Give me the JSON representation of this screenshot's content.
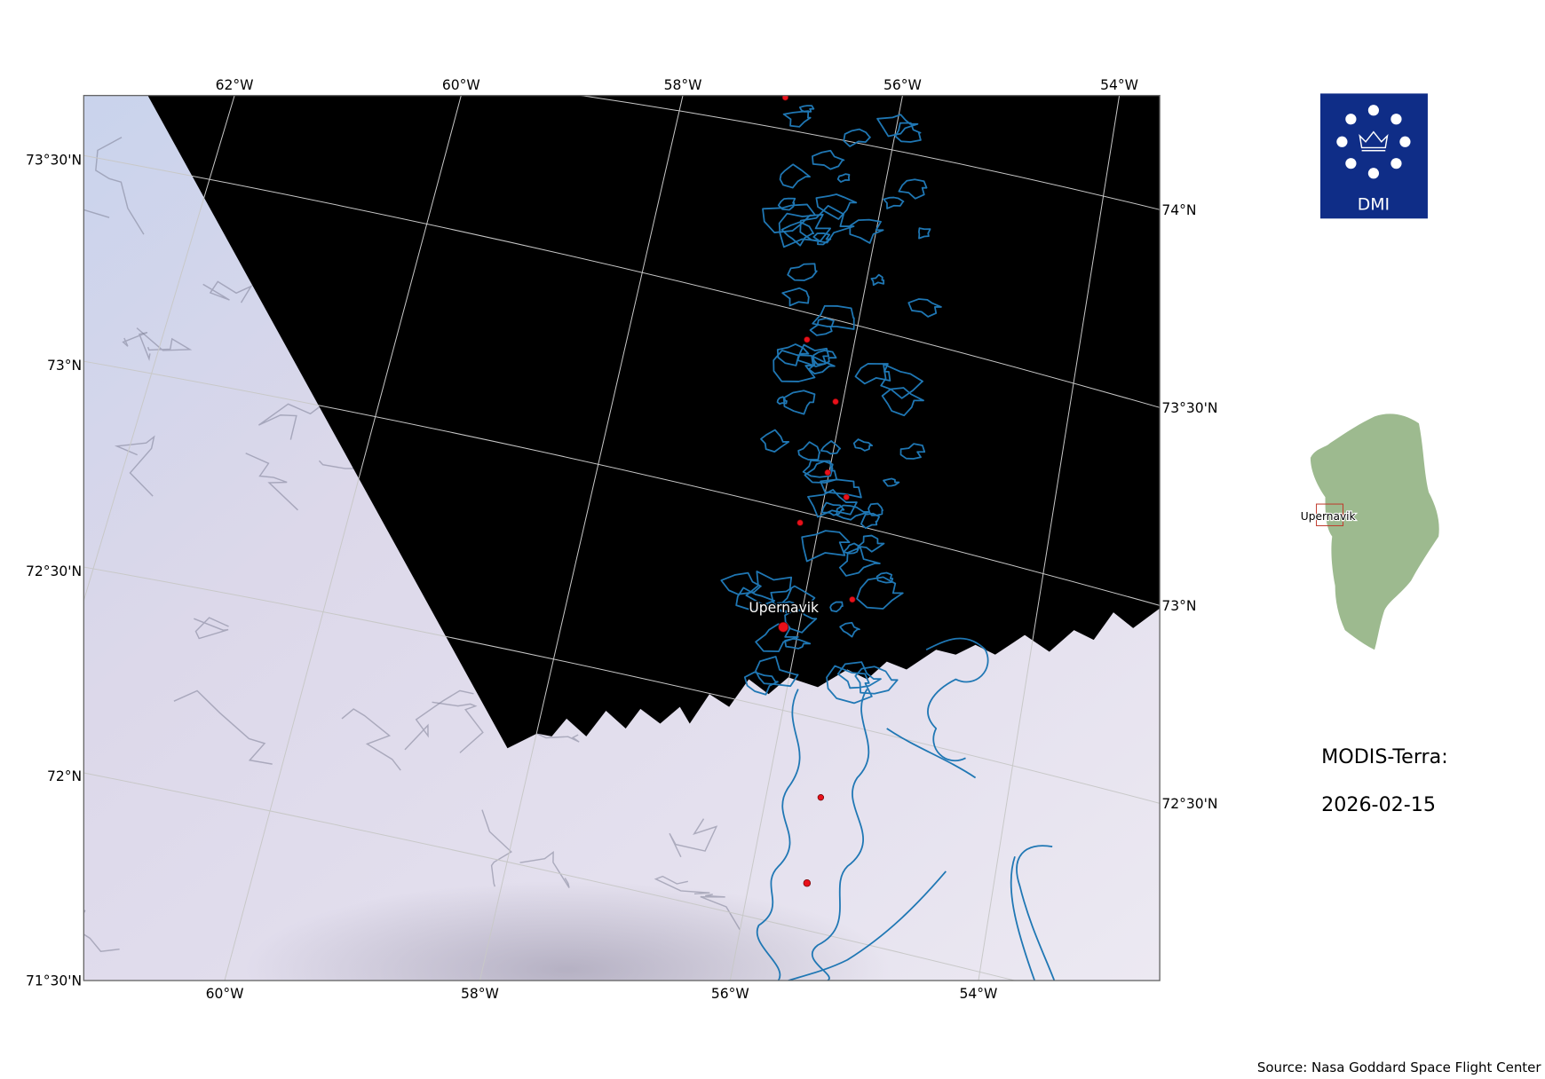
{
  "map": {
    "top_ticks": [
      "62°W",
      "60°W",
      "58°W",
      "56°W",
      "54°W"
    ],
    "bottom_ticks": [
      "60°W",
      "58°W",
      "56°W",
      "54°W"
    ],
    "left_ticks": [
      "73°30'N",
      "73°N",
      "72°30'N",
      "72°N",
      "71°30'N"
    ],
    "right_ticks": [
      "74°N",
      "73°30'N",
      "73°N",
      "72°30'N"
    ],
    "place_label": "Upernavik",
    "colors": {
      "coastline": "#1f77b4",
      "settlement": "#e8101a",
      "no_data": "#000000",
      "ice": "#dedcec"
    }
  },
  "logo": {
    "text": "DMI",
    "color": "#0f2d87"
  },
  "inset": {
    "label": "Upernavik",
    "land_color": "#9dba8f",
    "box_color": "#c0392b"
  },
  "info": {
    "sensor": "MODIS-Terra:",
    "date": "2026-02-15"
  },
  "source": "Source: Nasa Goddard Space Flight Center"
}
